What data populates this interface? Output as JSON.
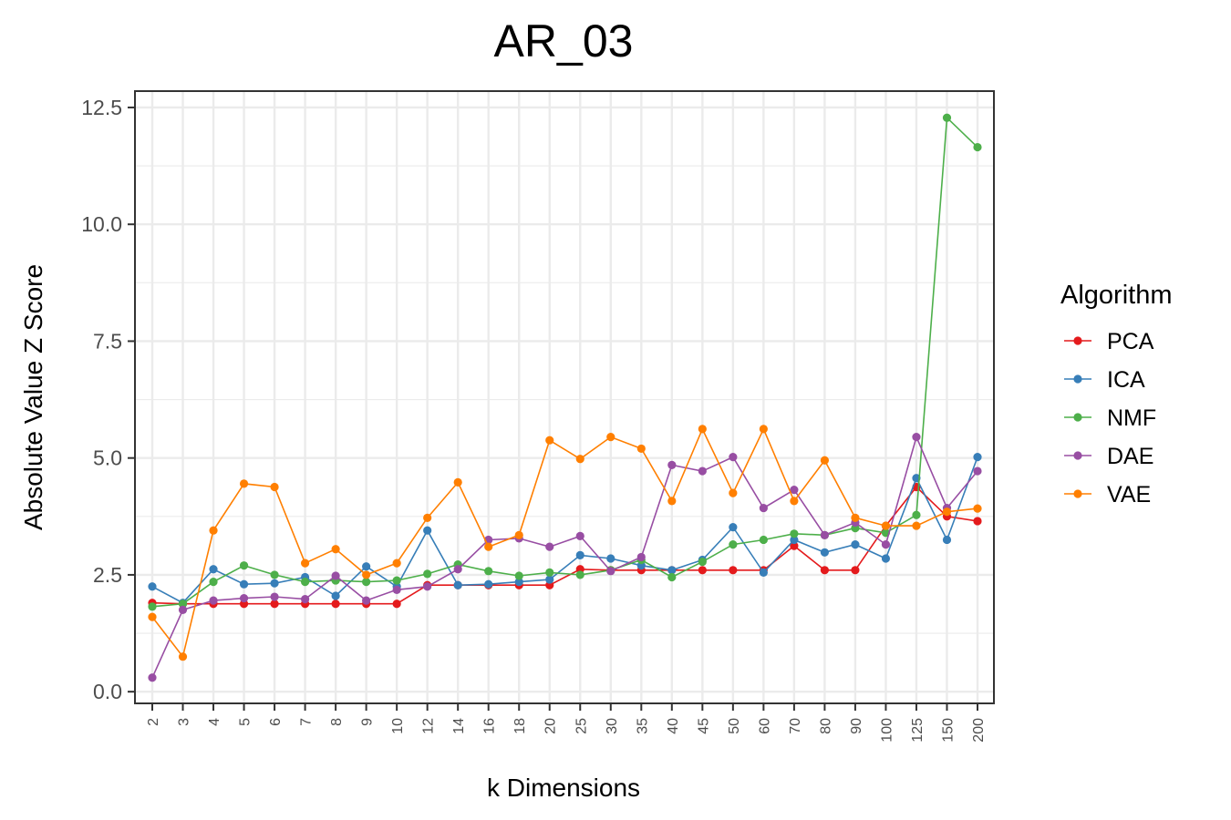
{
  "chart_data": {
    "type": "line",
    "title": "AR_03",
    "xlabel": "k Dimensions",
    "ylabel": "Absolute Value Z Score",
    "categories": [
      "2",
      "3",
      "4",
      "5",
      "6",
      "7",
      "8",
      "9",
      "10",
      "12",
      "14",
      "16",
      "18",
      "20",
      "25",
      "30",
      "35",
      "40",
      "45",
      "50",
      "60",
      "70",
      "80",
      "90",
      "100",
      "125",
      "150",
      "200"
    ],
    "ylim": [
      -0.25,
      12.85
    ],
    "yticks": [
      0.0,
      2.5,
      5.0,
      7.5,
      10.0,
      12.5
    ],
    "ytick_labels": [
      "0.0",
      "2.5",
      "5.0",
      "7.5",
      "10.0",
      "12.5"
    ],
    "grid": true,
    "legend": {
      "title": "Algorithm",
      "position": "right"
    },
    "series": [
      {
        "name": "PCA",
        "color": "#E41A1C",
        "values": [
          1.9,
          1.88,
          1.88,
          1.88,
          1.88,
          1.88,
          1.88,
          1.88,
          1.88,
          2.28,
          2.28,
          2.28,
          2.28,
          2.28,
          2.62,
          2.6,
          2.6,
          2.6,
          2.6,
          2.6,
          2.6,
          3.12,
          2.6,
          2.6,
          3.55,
          4.38,
          3.75,
          3.65
        ]
      },
      {
        "name": "ICA",
        "color": "#377EB8",
        "values": [
          2.25,
          1.9,
          2.62,
          2.3,
          2.32,
          2.45,
          2.05,
          2.68,
          2.25,
          3.45,
          2.28,
          2.3,
          2.35,
          2.4,
          2.92,
          2.85,
          2.7,
          2.6,
          2.82,
          3.52,
          2.55,
          3.25,
          2.98,
          3.15,
          2.85,
          4.57,
          3.25,
          5.02
        ]
      },
      {
        "name": "NMF",
        "color": "#4DAF4A",
        "values": [
          1.82,
          1.88,
          2.35,
          2.7,
          2.5,
          2.35,
          2.38,
          2.35,
          2.38,
          2.52,
          2.72,
          2.58,
          2.48,
          2.55,
          2.5,
          2.6,
          2.82,
          2.45,
          2.78,
          3.15,
          3.25,
          3.38,
          3.35,
          3.5,
          3.4,
          3.78,
          12.28,
          11.65
        ]
      },
      {
        "name": "DAE",
        "color": "#984EA3",
        "values": [
          0.3,
          1.75,
          1.95,
          2.0,
          2.03,
          1.98,
          2.48,
          1.95,
          2.18,
          2.25,
          2.62,
          3.25,
          3.28,
          3.1,
          3.33,
          2.58,
          2.88,
          4.85,
          4.72,
          5.02,
          3.93,
          4.32,
          3.35,
          3.62,
          3.15,
          5.45,
          3.93,
          4.72
        ]
      },
      {
        "name": "VAE",
        "color": "#FF7F00",
        "values": [
          1.6,
          0.75,
          3.45,
          4.45,
          4.38,
          2.75,
          3.05,
          2.5,
          2.75,
          3.72,
          4.48,
          3.1,
          3.35,
          5.38,
          4.98,
          5.45,
          5.2,
          4.08,
          5.62,
          4.25,
          5.62,
          4.08,
          4.95,
          3.72,
          3.55,
          3.55,
          3.85,
          3.92
        ]
      }
    ]
  }
}
